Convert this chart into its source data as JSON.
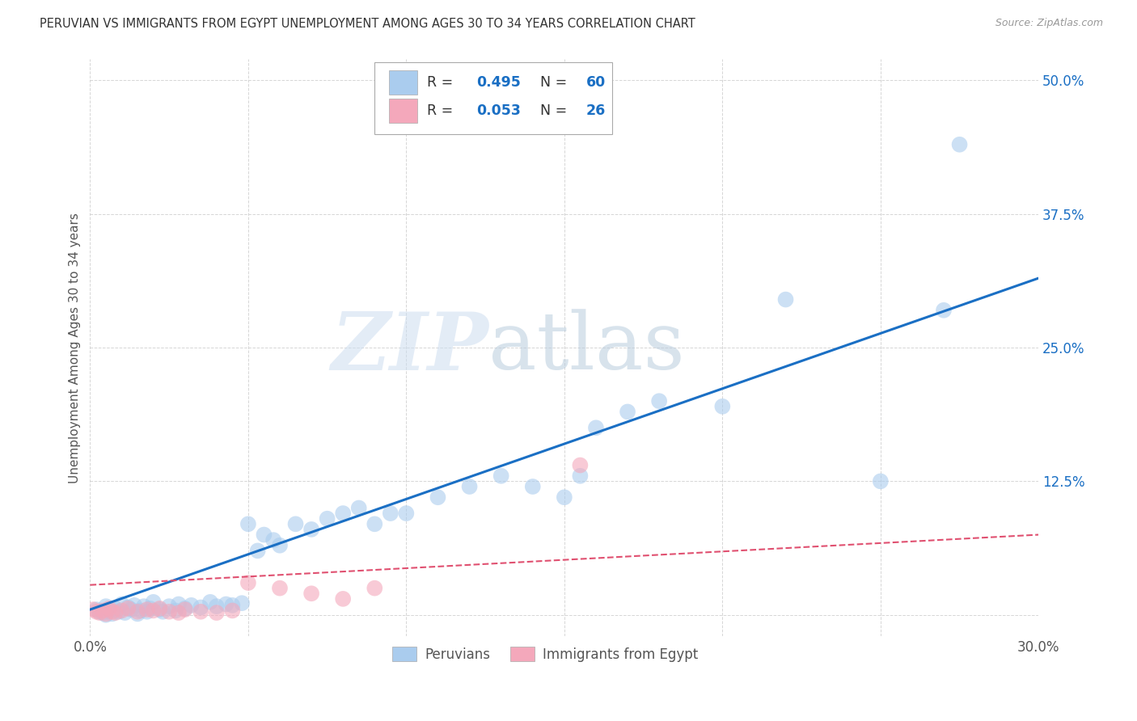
{
  "title": "PERUVIAN VS IMMIGRANTS FROM EGYPT UNEMPLOYMENT AMONG AGES 30 TO 34 YEARS CORRELATION CHART",
  "source": "Source: ZipAtlas.com",
  "ylabel": "Unemployment Among Ages 30 to 34 years",
  "xlim": [
    0.0,
    0.3
  ],
  "ylim": [
    -0.02,
    0.52
  ],
  "xticks": [
    0.0,
    0.05,
    0.1,
    0.15,
    0.2,
    0.25,
    0.3
  ],
  "ytick_positions": [
    0.0,
    0.125,
    0.25,
    0.375,
    0.5
  ],
  "yticklabels": [
    "",
    "12.5%",
    "25.0%",
    "37.5%",
    "50.0%"
  ],
  "blue_color": "#aaccee",
  "pink_color": "#f4a8bb",
  "blue_line_color": "#1a6fc4",
  "pink_line_color": "#e05070",
  "R_blue": "0.495",
  "N_blue": "60",
  "R_pink": "0.053",
  "N_pink": "26",
  "watermark_zip": "ZIP",
  "watermark_atlas": "atlas",
  "legend_label_blue": "Peruvians",
  "legend_label_pink": "Immigrants from Egypt",
  "blue_line_x0": 0.0,
  "blue_line_y0": 0.005,
  "blue_line_x1": 0.3,
  "blue_line_y1": 0.315,
  "pink_line_x0": 0.0,
  "pink_line_y0": 0.028,
  "pink_line_x1": 0.3,
  "pink_line_y1": 0.075,
  "blue_scatter_x": [
    0.002,
    0.003,
    0.004,
    0.005,
    0.005,
    0.006,
    0.007,
    0.008,
    0.009,
    0.01,
    0.011,
    0.012,
    0.013,
    0.014,
    0.015,
    0.016,
    0.017,
    0.018,
    0.019,
    0.02,
    0.022,
    0.023,
    0.025,
    0.027,
    0.028,
    0.03,
    0.032,
    0.035,
    0.038,
    0.04,
    0.043,
    0.045,
    0.048,
    0.05,
    0.053,
    0.055,
    0.058,
    0.06,
    0.065,
    0.07,
    0.075,
    0.08,
    0.085,
    0.09,
    0.095,
    0.1,
    0.11,
    0.12,
    0.13,
    0.14,
    0.15,
    0.155,
    0.16,
    0.17,
    0.18,
    0.2,
    0.22,
    0.25,
    0.27,
    0.275
  ],
  "blue_scatter_y": [
    0.005,
    0.003,
    0.002,
    0.008,
    0.0,
    0.004,
    0.001,
    0.006,
    0.003,
    0.01,
    0.002,
    0.007,
    0.005,
    0.009,
    0.001,
    0.004,
    0.008,
    0.003,
    0.006,
    0.012,
    0.005,
    0.003,
    0.008,
    0.004,
    0.01,
    0.006,
    0.009,
    0.007,
    0.012,
    0.008,
    0.01,
    0.009,
    0.011,
    0.085,
    0.06,
    0.075,
    0.07,
    0.065,
    0.085,
    0.08,
    0.09,
    0.095,
    0.1,
    0.085,
    0.095,
    0.095,
    0.11,
    0.12,
    0.13,
    0.12,
    0.11,
    0.13,
    0.175,
    0.19,
    0.2,
    0.195,
    0.295,
    0.125,
    0.285,
    0.44
  ],
  "pink_scatter_x": [
    0.001,
    0.002,
    0.003,
    0.004,
    0.005,
    0.006,
    0.007,
    0.008,
    0.01,
    0.012,
    0.015,
    0.018,
    0.02,
    0.022,
    0.025,
    0.028,
    0.03,
    0.035,
    0.04,
    0.045,
    0.05,
    0.06,
    0.07,
    0.08,
    0.09,
    0.155
  ],
  "pink_scatter_y": [
    0.005,
    0.003,
    0.002,
    0.004,
    0.001,
    0.006,
    0.003,
    0.002,
    0.004,
    0.006,
    0.003,
    0.005,
    0.004,
    0.006,
    0.003,
    0.002,
    0.005,
    0.003,
    0.002,
    0.004,
    0.03,
    0.025,
    0.02,
    0.015,
    0.025,
    0.14
  ],
  "background_color": "#ffffff",
  "grid_color": "#cccccc",
  "label_color": "#1a6fc4",
  "text_color": "#555555",
  "title_color": "#333333"
}
